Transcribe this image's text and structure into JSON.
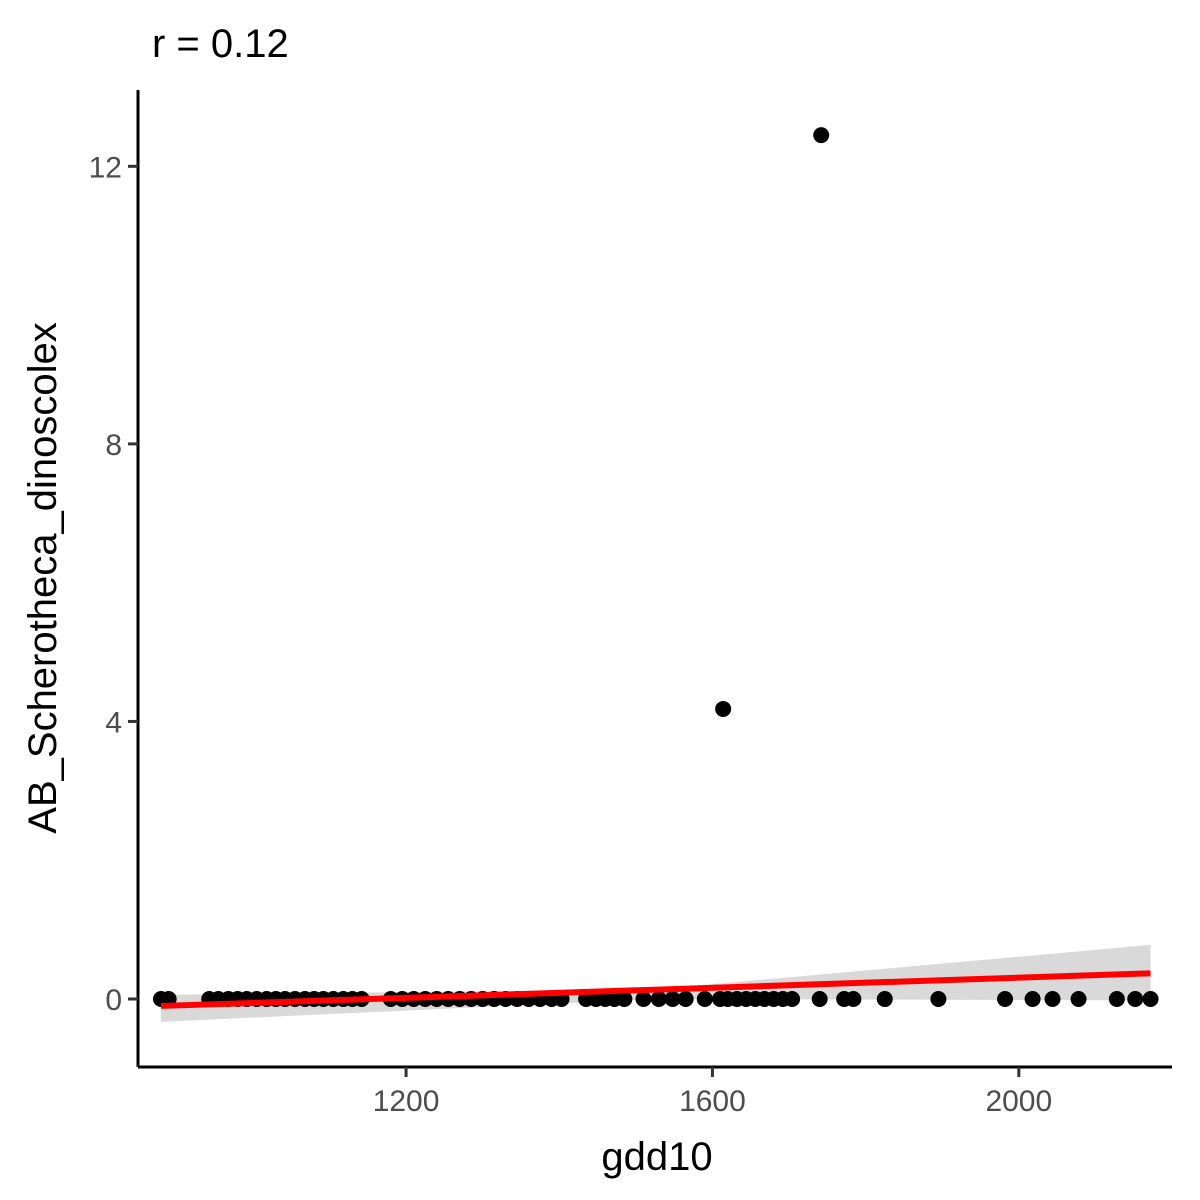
{
  "chart_data": {
    "type": "scatter",
    "title": "r = 0.12",
    "xlabel": "gdd10",
    "ylabel": "AB_Scherotheca_dinoscolex",
    "xlim": [
      850,
      2200
    ],
    "ylim": [
      -0.98,
      13.1
    ],
    "x_ticks": [
      {
        "value": 1200,
        "label": "1200"
      },
      {
        "value": 1600,
        "label": "1600"
      },
      {
        "value": 2000,
        "label": "2000"
      }
    ],
    "y_ticks": [
      {
        "value": 0,
        "label": "0"
      },
      {
        "value": 4,
        "label": "4"
      },
      {
        "value": 8,
        "label": "8"
      },
      {
        "value": 12,
        "label": "12"
      }
    ],
    "grid": false,
    "legend": "none",
    "colors": {
      "points": "#000000",
      "fit_line": "#ff0000",
      "confidence_band": "#d9d9d9",
      "axis": "#000000",
      "tick_label": "#4d4d4d"
    },
    "series": [
      {
        "points": [
          {
            "x": 880,
            "y": 0
          },
          {
            "x": 890,
            "y": 0
          },
          {
            "x": 943,
            "y": 0
          },
          {
            "x": 955,
            "y": 0
          },
          {
            "x": 968,
            "y": 0
          },
          {
            "x": 980,
            "y": 0
          },
          {
            "x": 992,
            "y": 0
          },
          {
            "x": 1005,
            "y": 0
          },
          {
            "x": 1018,
            "y": 0
          },
          {
            "x": 1030,
            "y": 0
          },
          {
            "x": 1042,
            "y": 0
          },
          {
            "x": 1055,
            "y": 0
          },
          {
            "x": 1068,
            "y": 0
          },
          {
            "x": 1080,
            "y": 0
          },
          {
            "x": 1092,
            "y": 0
          },
          {
            "x": 1105,
            "y": 0
          },
          {
            "x": 1118,
            "y": 0
          },
          {
            "x": 1130,
            "y": 0
          },
          {
            "x": 1142,
            "y": 0
          },
          {
            "x": 1180,
            "y": 0
          },
          {
            "x": 1195,
            "y": 0
          },
          {
            "x": 1210,
            "y": 0
          },
          {
            "x": 1225,
            "y": 0
          },
          {
            "x": 1240,
            "y": 0
          },
          {
            "x": 1255,
            "y": 0
          },
          {
            "x": 1270,
            "y": 0
          },
          {
            "x": 1285,
            "y": 0
          },
          {
            "x": 1300,
            "y": 0
          },
          {
            "x": 1315,
            "y": 0
          },
          {
            "x": 1330,
            "y": 0
          },
          {
            "x": 1345,
            "y": 0
          },
          {
            "x": 1360,
            "y": 0
          },
          {
            "x": 1375,
            "y": 0
          },
          {
            "x": 1390,
            "y": 0
          },
          {
            "x": 1403,
            "y": 0
          },
          {
            "x": 1435,
            "y": 0
          },
          {
            "x": 1448,
            "y": 0
          },
          {
            "x": 1460,
            "y": 0
          },
          {
            "x": 1472,
            "y": 0
          },
          {
            "x": 1485,
            "y": 0
          },
          {
            "x": 1510,
            "y": 0
          },
          {
            "x": 1530,
            "y": 0
          },
          {
            "x": 1548,
            "y": 0
          },
          {
            "x": 1565,
            "y": 0
          },
          {
            "x": 1590,
            "y": 0
          },
          {
            "x": 1610,
            "y": 0
          },
          {
            "x": 1620,
            "y": 0
          },
          {
            "x": 1632,
            "y": 0
          },
          {
            "x": 1644,
            "y": 0
          },
          {
            "x": 1656,
            "y": 0
          },
          {
            "x": 1668,
            "y": 0
          },
          {
            "x": 1680,
            "y": 0
          },
          {
            "x": 1692,
            "y": 0
          },
          {
            "x": 1704,
            "y": 0
          },
          {
            "x": 1740,
            "y": 0
          },
          {
            "x": 1772,
            "y": 0
          },
          {
            "x": 1784,
            "y": 0
          },
          {
            "x": 1825,
            "y": 0
          },
          {
            "x": 1895,
            "y": 0
          },
          {
            "x": 1982,
            "y": 0
          },
          {
            "x": 2018,
            "y": 0
          },
          {
            "x": 2044,
            "y": 0
          },
          {
            "x": 2078,
            "y": 0
          },
          {
            "x": 2128,
            "y": 0
          },
          {
            "x": 2152,
            "y": 0
          },
          {
            "x": 2172,
            "y": 0
          },
          {
            "x": 1614,
            "y": 4.18
          },
          {
            "x": 1742,
            "y": 12.45
          }
        ]
      }
    ],
    "fit_line": {
      "method": "linear",
      "x": [
        880,
        2172
      ],
      "y": [
        -0.1,
        0.37
      ]
    },
    "confidence_band": {
      "x": [
        880,
        1526,
        2172
      ],
      "upper": [
        0.06,
        0.14,
        0.78
      ],
      "lower": [
        -0.33,
        0.0,
        -0.02
      ]
    }
  }
}
